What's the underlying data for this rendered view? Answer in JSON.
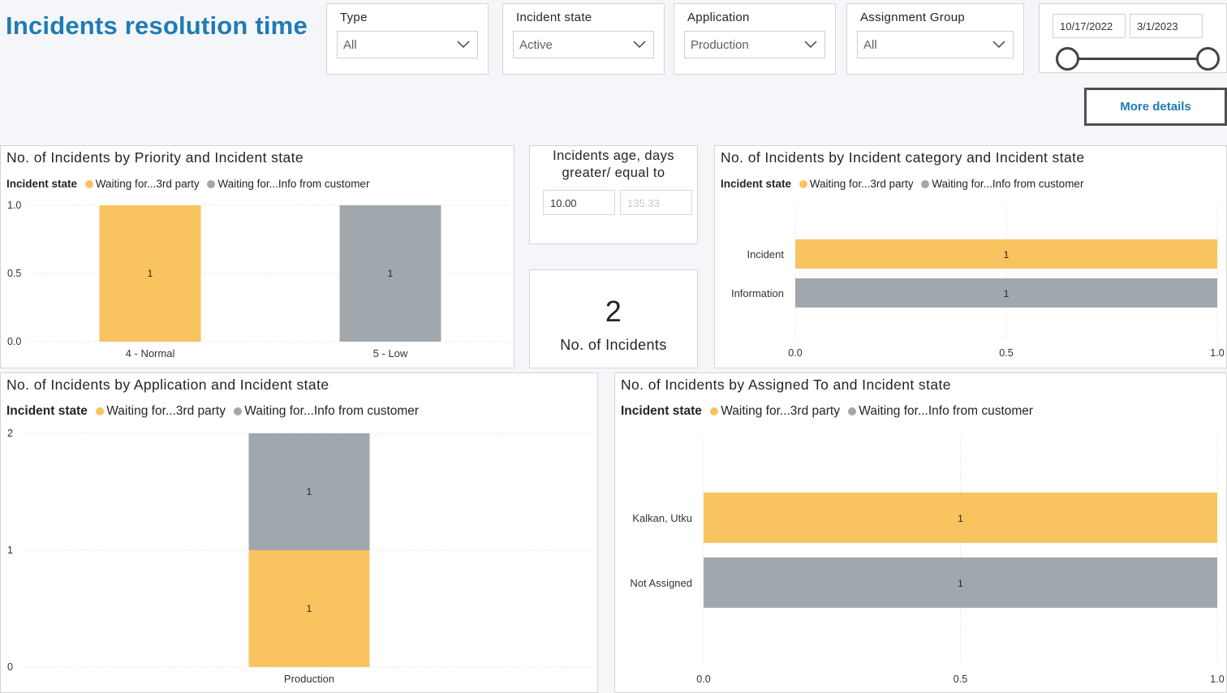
{
  "header": {
    "title": "Incidents resolution time"
  },
  "filters": {
    "type": {
      "label": "Type",
      "value": "All"
    },
    "incident_state": {
      "label": "Incident state",
      "value": "Active"
    },
    "application": {
      "label": "Application",
      "value": "Production"
    },
    "assignment_group": {
      "label": "Assignment Group",
      "value": "All"
    },
    "date_range": {
      "start": "10/17/2022",
      "end": "3/1/2023"
    }
  },
  "more_details_label": "More details",
  "legend": {
    "title": "Incident state",
    "items": [
      "Waiting for...3rd party",
      "Waiting for...Info from customer"
    ]
  },
  "colors": {
    "waiting_3rd_party": "#f9c360",
    "waiting_info_customer": "#a0a8ad",
    "title": "#1f7bb4"
  },
  "age_card": {
    "title_line1": "Incidents age, days",
    "title_line2": "greater/ equal to",
    "min_value": "10.00",
    "max_value": "135.33"
  },
  "count_card": {
    "value": "2",
    "label": "No. of Incidents"
  },
  "chart_data": [
    {
      "id": "priority",
      "type": "bar",
      "title": "No. of Incidents by Priority and Incident state",
      "categories": [
        "4 - Normal",
        "5 - Low"
      ],
      "series": [
        {
          "name": "Waiting for...3rd party",
          "values": [
            1,
            0
          ]
        },
        {
          "name": "Waiting for...Info from customer",
          "values": [
            0,
            1
          ]
        }
      ],
      "ylim": [
        0,
        1
      ],
      "yticks": [
        "0.0",
        "0.5",
        "1.0"
      ],
      "data_labels": [
        "1",
        "1"
      ]
    },
    {
      "id": "category",
      "type": "bar",
      "orientation": "horizontal",
      "title": "No. of Incidents by Incident category and Incident state",
      "categories": [
        "Incident",
        "Information"
      ],
      "series": [
        {
          "name": "Waiting for...3rd party",
          "values": [
            1,
            0
          ]
        },
        {
          "name": "Waiting for...Info from customer",
          "values": [
            0,
            1
          ]
        }
      ],
      "xlim": [
        0,
        1
      ],
      "xticks": [
        "0.0",
        "0.5",
        "1.0"
      ],
      "data_labels": [
        "1",
        "1"
      ]
    },
    {
      "id": "application",
      "type": "bar",
      "stacked": true,
      "title": "No. of Incidents by Application and Incident state",
      "categories": [
        "Production"
      ],
      "series": [
        {
          "name": "Waiting for...3rd party",
          "values": [
            1
          ]
        },
        {
          "name": "Waiting for...Info from customer",
          "values": [
            1
          ]
        }
      ],
      "ylim": [
        0,
        2
      ],
      "yticks": [
        "0",
        "1",
        "2"
      ],
      "data_labels": [
        "1",
        "1"
      ]
    },
    {
      "id": "assigned",
      "type": "bar",
      "orientation": "horizontal",
      "title": "No. of Incidents by Assigned To and Incident state",
      "categories": [
        "Kalkan, Utku",
        "Not Assigned"
      ],
      "series": [
        {
          "name": "Waiting for...3rd party",
          "values": [
            1,
            0
          ]
        },
        {
          "name": "Waiting for...Info from customer",
          "values": [
            0,
            1
          ]
        }
      ],
      "xlim": [
        0,
        1
      ],
      "xticks": [
        "0.0",
        "0.5",
        "1.0"
      ],
      "data_labels": [
        "1",
        "1"
      ]
    }
  ]
}
